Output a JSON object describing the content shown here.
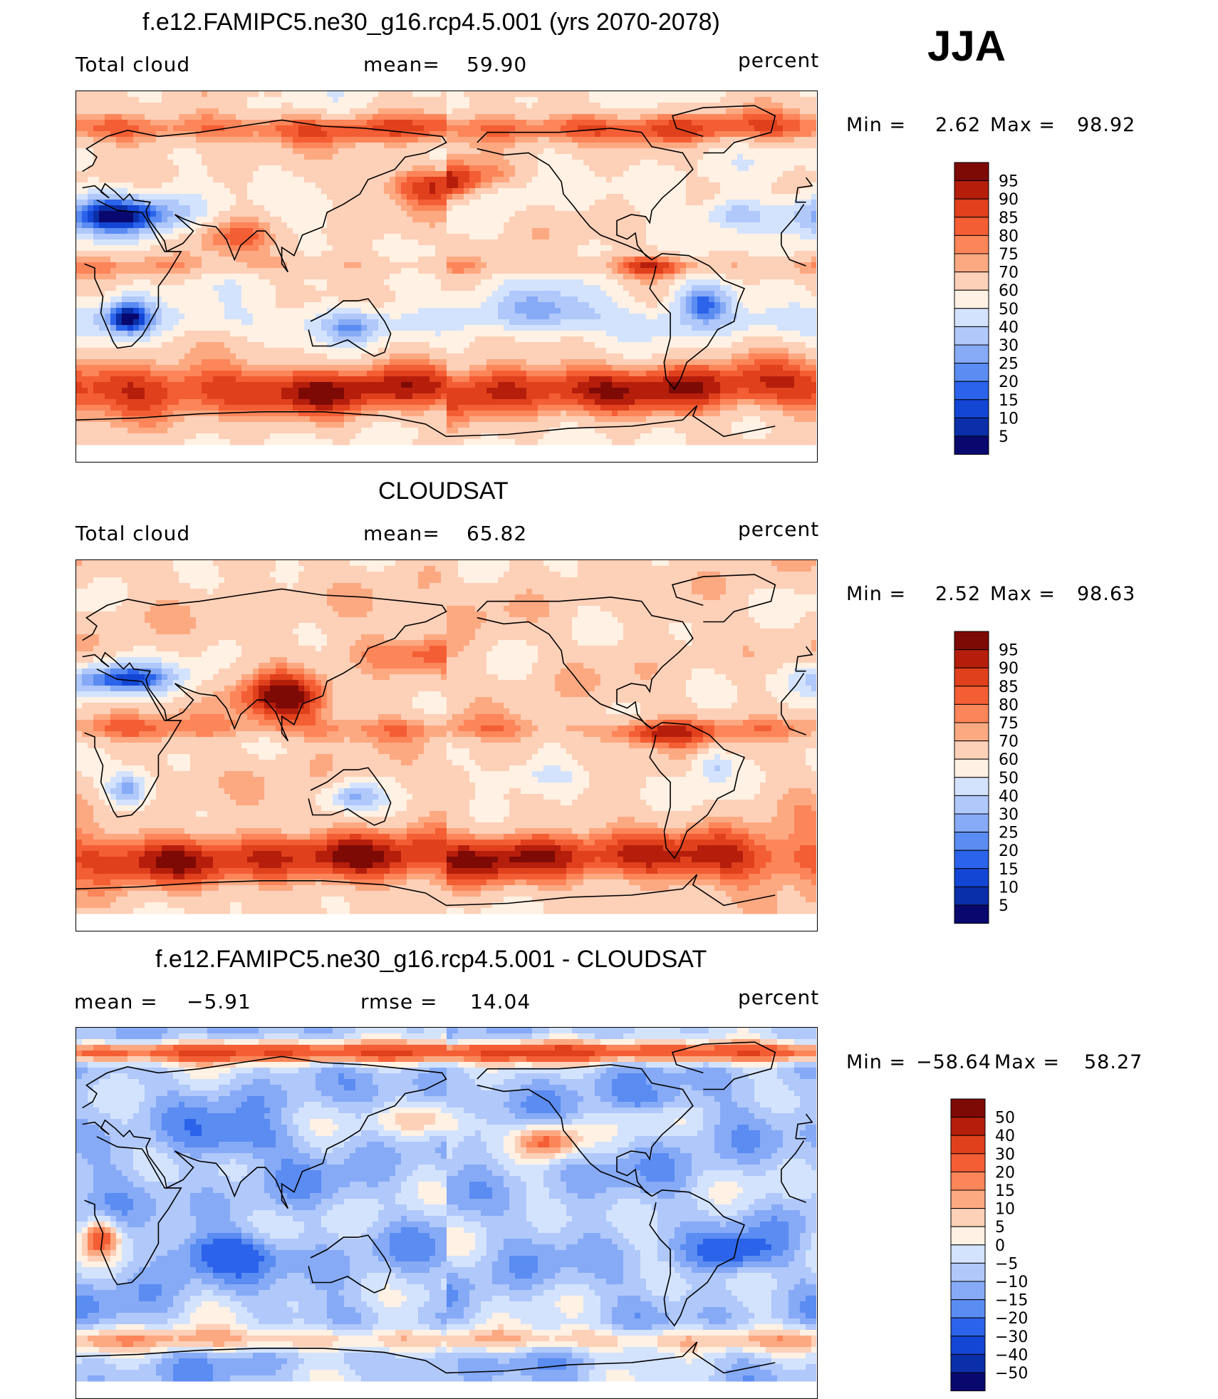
{
  "season": "JJA",
  "colors": {
    "abs_scale": [
      "#08086e",
      "#0a2fa8",
      "#1446d6",
      "#2b63ea",
      "#5a8cf2",
      "#86aaf6",
      "#b0c8fa",
      "#d4e3fd",
      "#fff1e3",
      "#fdd0b8",
      "#fca982",
      "#fc8559",
      "#f45e34",
      "#e0401c",
      "#b61e0c",
      "#7d0a05"
    ],
    "diff_scale": [
      "#08086e",
      "#0a2fa8",
      "#1446d6",
      "#2b63ea",
      "#5a8cf2",
      "#86aaf6",
      "#b0c8fa",
      "#d4e3fd",
      "#fff1e3",
      "#fdd0b8",
      "#fca982",
      "#fc8559",
      "#f45e34",
      "#e0401c",
      "#b61e0c",
      "#7d0a05"
    ]
  },
  "panels": [
    {
      "title": "f.e12.FAMIPC5.ne30_g16.rcp4.5.001 (yrs 2070-2078)",
      "left_label": "Total cloud",
      "mid_label": "mean=",
      "mid_value": "59.90",
      "units": "percent",
      "min_label": "Min =",
      "min_value": "2.62",
      "max_label": "Max =",
      "max_value": "98.92",
      "ticks": [
        "95",
        "90",
        "85",
        "80",
        "75",
        "70",
        "60",
        "50",
        "40",
        "30",
        "25",
        "20",
        "15",
        "10",
        "5"
      ],
      "map_data": {
        "variable": "Total cloud",
        "units": "percent",
        "base": 60,
        "blobs": [
          {
            "lon": 180,
            "lat": 45,
            "rx": 35,
            "ry": 10,
            "v": 32
          },
          {
            "lon": 20,
            "lat": 30,
            "rx": 35,
            "ry": 10,
            "v": -50
          },
          {
            "lon": 25,
            "lat": -20,
            "rx": 12,
            "ry": 10,
            "v": -45
          },
          {
            "lon": -55,
            "lat": -12,
            "rx": 15,
            "ry": 10,
            "v": -40
          },
          {
            "lon": -130,
            "lat": -15,
            "rx": 30,
            "ry": 10,
            "v": -28
          },
          {
            "lon": 75,
            "lat": 20,
            "rx": 20,
            "ry": 10,
            "v": 18
          },
          {
            "lon": 135,
            "lat": -25,
            "rx": 15,
            "ry": 8,
            "v": -25
          },
          {
            "lon": -40,
            "lat": 30,
            "rx": 15,
            "ry": 8,
            "v": -30
          },
          {
            "lon": -80,
            "lat": 5,
            "rx": 20,
            "ry": 6,
            "v": 20
          },
          {
            "lon": -150,
            "lat": 40,
            "rx": 20,
            "ry": 8,
            "v": -15
          }
        ],
        "bands": [
          {
            "lat": -55,
            "width": 14,
            "v": 30
          },
          {
            "lat": 72,
            "width": 8,
            "v": 22
          },
          {
            "lat": -22,
            "width": 8,
            "v": -12
          },
          {
            "lat": 5,
            "width": 5,
            "v": 10
          }
        ]
      }
    },
    {
      "title": "CLOUDSAT",
      "left_label": "Total cloud",
      "mid_label": "mean=",
      "mid_value": "65.82",
      "units": "percent",
      "min_label": "Min =",
      "min_value": "2.52",
      "max_label": "Max =",
      "max_value": "98.63",
      "ticks": [
        "95",
        "90",
        "85",
        "80",
        "75",
        "70",
        "60",
        "50",
        "40",
        "30",
        "25",
        "20",
        "15",
        "10",
        "5"
      ],
      "map_data": {
        "variable": "Total cloud",
        "units": "percent",
        "base": 64,
        "blobs": [
          {
            "lon": 100,
            "lat": 22,
            "rx": 22,
            "ry": 12,
            "v": 32
          },
          {
            "lon": 20,
            "lat": 32,
            "rx": 30,
            "ry": 8,
            "v": -48
          },
          {
            "lon": 25,
            "lat": -22,
            "rx": 10,
            "ry": 8,
            "v": -40
          },
          {
            "lon": 135,
            "lat": -25,
            "rx": 12,
            "ry": 6,
            "v": -28
          },
          {
            "lon": -130,
            "lat": -15,
            "rx": 25,
            "ry": 8,
            "v": -20
          },
          {
            "lon": -50,
            "lat": -10,
            "rx": 10,
            "ry": 8,
            "v": -25
          },
          {
            "lon": 160,
            "lat": 45,
            "rx": 30,
            "ry": 10,
            "v": 18
          },
          {
            "lon": -80,
            "lat": 5,
            "rx": 20,
            "ry": 6,
            "v": 18
          }
        ],
        "bands": [
          {
            "lat": -55,
            "width": 13,
            "v": 26
          },
          {
            "lat": 8,
            "width": 6,
            "v": 12
          }
        ]
      }
    },
    {
      "title": "f.e12.FAMIPC5.ne30_g16.rcp4.5.001 - CLOUDSAT",
      "left_label": "mean =",
      "left_value": "−5.91",
      "mid_label": "rmse =",
      "mid_value": "14.04",
      "units": "percent",
      "min_label": "Min =",
      "min_value": "−58.64",
      "max_label": "Max =",
      "max_value": "58.27",
      "ticks": [
        "50",
        "40",
        "30",
        "20",
        "15",
        "10",
        "5",
        "0",
        "−5",
        "−10",
        "−15",
        "−20",
        "−30",
        "−40",
        "−50"
      ],
      "map_data": {
        "variable": "Total cloud difference",
        "units": "percent",
        "base": -8,
        "blobs": [
          {
            "lon": 75,
            "lat": -20,
            "rx": 30,
            "ry": 10,
            "v": -15
          },
          {
            "lon": 80,
            "lat": 35,
            "rx": 30,
            "ry": 10,
            "v": -12
          },
          {
            "lon": -130,
            "lat": 35,
            "rx": 15,
            "ry": 8,
            "v": 30
          },
          {
            "lon": 170,
            "lat": 45,
            "rx": 25,
            "ry": 8,
            "v": 16
          },
          {
            "lon": 12,
            "lat": -12,
            "rx": 8,
            "ry": 8,
            "v": 30
          },
          {
            "lon": -80,
            "lat": 55,
            "rx": 20,
            "ry": 6,
            "v": -10
          },
          {
            "lon": -40,
            "lat": -20,
            "rx": 20,
            "ry": 8,
            "v": -15
          }
        ],
        "bands": [
          {
            "lat": 78,
            "width": 5,
            "v": 35
          },
          {
            "lat": -62,
            "width": 6,
            "v": 18
          }
        ]
      }
    }
  ]
}
